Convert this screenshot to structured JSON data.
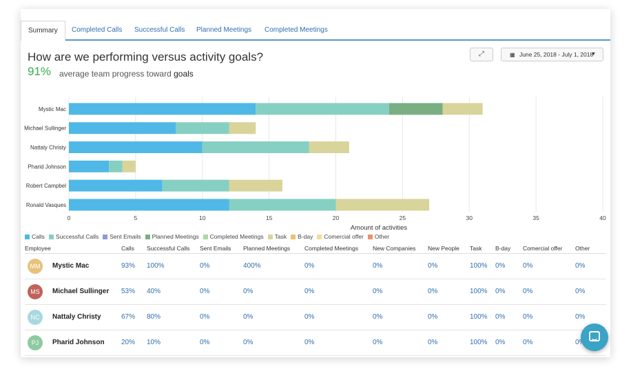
{
  "tabs": [
    "Summary",
    "Completed Calls",
    "Successful Calls",
    "Planned Meetings",
    "Completed Meetings"
  ],
  "header": {
    "title": "How are we performing versus activity goals?",
    "progress": "91%",
    "subtitle_prefix": "average team progress toward",
    "subtitle_bold": "goals",
    "date_range": "June 25, 2018 - July 1, 2018",
    "expand_icon": "expand-icon",
    "calendar_icon": "calendar-icon"
  },
  "colors": {
    "Calls": "#4fb8e6",
    "Successful Calls": "#86cfc3",
    "Sent Emails": "#8d9bcf",
    "Planned Meetings": "#7aaf83",
    "Completed Meetings": "#a9d8a0",
    "Task": "#d9d49a",
    "B-day": "#f0c070",
    "Comercial offer": "#f1de9b",
    "Other": "#f08f6c"
  },
  "chart_data": {
    "type": "bar",
    "orientation": "horizontal",
    "stacked": true,
    "categories": [
      "Mystic Mac",
      "Michael Sullinger",
      "Nattaly Christy",
      "Pharid Johnson",
      "Robert Campbel",
      "Ronald Vasques"
    ],
    "series": [
      {
        "name": "Calls",
        "values": [
          14,
          8,
          10,
          3,
          7,
          12
        ]
      },
      {
        "name": "Successful Calls",
        "values": [
          10,
          4,
          8,
          1,
          5,
          8
        ]
      },
      {
        "name": "Planned Meetings",
        "values": [
          4,
          0,
          0,
          0,
          0,
          0
        ]
      },
      {
        "name": "Task",
        "values": [
          3,
          2,
          3,
          1,
          4,
          7
        ]
      }
    ],
    "xlabel": "Amount of activities",
    "xlim": [
      0,
      40
    ],
    "xticks": [
      0,
      5,
      10,
      15,
      20,
      25,
      30,
      35,
      40
    ],
    "grid": true,
    "legend": "bottom"
  },
  "legend": [
    "Calls",
    "Successful Calls",
    "Sent Emails",
    "Planned Meetings",
    "Completed Meetings",
    "Task",
    "B-day",
    "Comercial offer",
    "Other"
  ],
  "table": {
    "columns": [
      "Employee",
      "Calls",
      "Successful Calls",
      "Sent Emails",
      "Planned Meetings",
      "Completed Meetings",
      "New Companies",
      "New People",
      "Task",
      "B-day",
      "Comercial offer",
      "Other"
    ],
    "rows": [
      {
        "initials": "MM",
        "avatar_color": "#e8c27a",
        "name": "Mystic Mac",
        "values": [
          "93%",
          "100%",
          "0%",
          "400%",
          "0%",
          "0%",
          "0%",
          "100%",
          "0%",
          "0%",
          "0%"
        ]
      },
      {
        "initials": "MS",
        "avatar_color": "#c0625a",
        "name": "Michael Sullinger",
        "values": [
          "53%",
          "40%",
          "0%",
          "0%",
          "0%",
          "0%",
          "0%",
          "100%",
          "0%",
          "0%",
          "0%"
        ]
      },
      {
        "initials": "NC",
        "avatar_color": "#a8d8e0",
        "name": "Nattaly Christy",
        "values": [
          "67%",
          "80%",
          "0%",
          "0%",
          "0%",
          "0%",
          "0%",
          "100%",
          "0%",
          "0%",
          "0%"
        ]
      },
      {
        "initials": "PJ",
        "avatar_color": "#8fcaa0",
        "name": "Pharid Johnson",
        "values": [
          "20%",
          "10%",
          "0%",
          "0%",
          "0%",
          "0%",
          "0%",
          "100%",
          "0%",
          "0%",
          "0%"
        ]
      }
    ]
  },
  "chat_icon": "chat-icon"
}
